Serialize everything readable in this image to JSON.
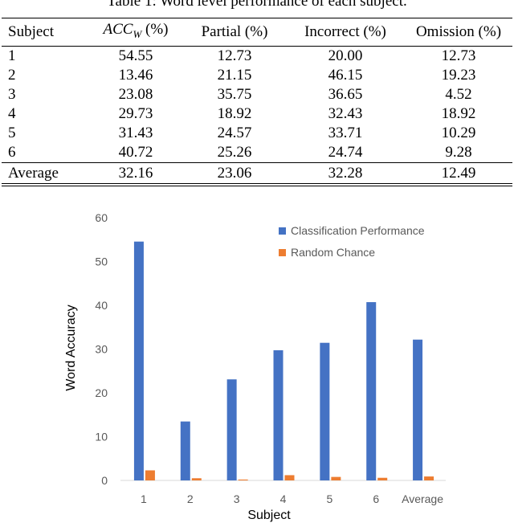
{
  "table": {
    "caption": "Table 1: Word level performance of each subject.",
    "headers": {
      "subject": "Subject",
      "acc_main": "ACC",
      "acc_sub": "W",
      "acc_unit": " (%)",
      "partial": "Partial (%)",
      "incorrect": "Incorrect (%)",
      "omission": "Omission (%)"
    },
    "rows": [
      {
        "subject": "1",
        "acc": "54.55",
        "partial": "12.73",
        "incorrect": "20.00",
        "omission": "12.73"
      },
      {
        "subject": "2",
        "acc": "13.46",
        "partial": "21.15",
        "incorrect": "46.15",
        "omission": "19.23"
      },
      {
        "subject": "3",
        "acc": "23.08",
        "partial": "35.75",
        "incorrect": "36.65",
        "omission": "4.52"
      },
      {
        "subject": "4",
        "acc": "29.73",
        "partial": "18.92",
        "incorrect": "32.43",
        "omission": "18.92"
      },
      {
        "subject": "5",
        "acc": "31.43",
        "partial": "24.57",
        "incorrect": "33.71",
        "omission": "10.29"
      },
      {
        "subject": "6",
        "acc": "40.72",
        "partial": "25.26",
        "incorrect": "24.74",
        "omission": "9.28"
      }
    ],
    "average": {
      "subject": "Average",
      "acc": "32.16",
      "partial": "23.06",
      "incorrect": "32.28",
      "omission": "12.49"
    }
  },
  "chart_data": {
    "type": "bar",
    "title": "",
    "xlabel": "Subject",
    "ylabel": "Word Accuracy",
    "ylim": [
      0,
      60
    ],
    "yticks": [
      0,
      10,
      20,
      30,
      40,
      50,
      60
    ],
    "grid": false,
    "legend_position": "top-right",
    "categories": [
      "1",
      "2",
      "3",
      "4",
      "5",
      "6",
      "Average"
    ],
    "series": [
      {
        "name": "Classification Performance",
        "color": "#4472C4",
        "values": [
          54.55,
          13.46,
          23.08,
          29.73,
          31.43,
          40.72,
          32.16
        ]
      },
      {
        "name": "Random Chance",
        "color": "#ED7D31",
        "values": [
          2.3,
          0.5,
          0.2,
          1.2,
          0.8,
          0.6,
          0.9
        ]
      }
    ]
  }
}
